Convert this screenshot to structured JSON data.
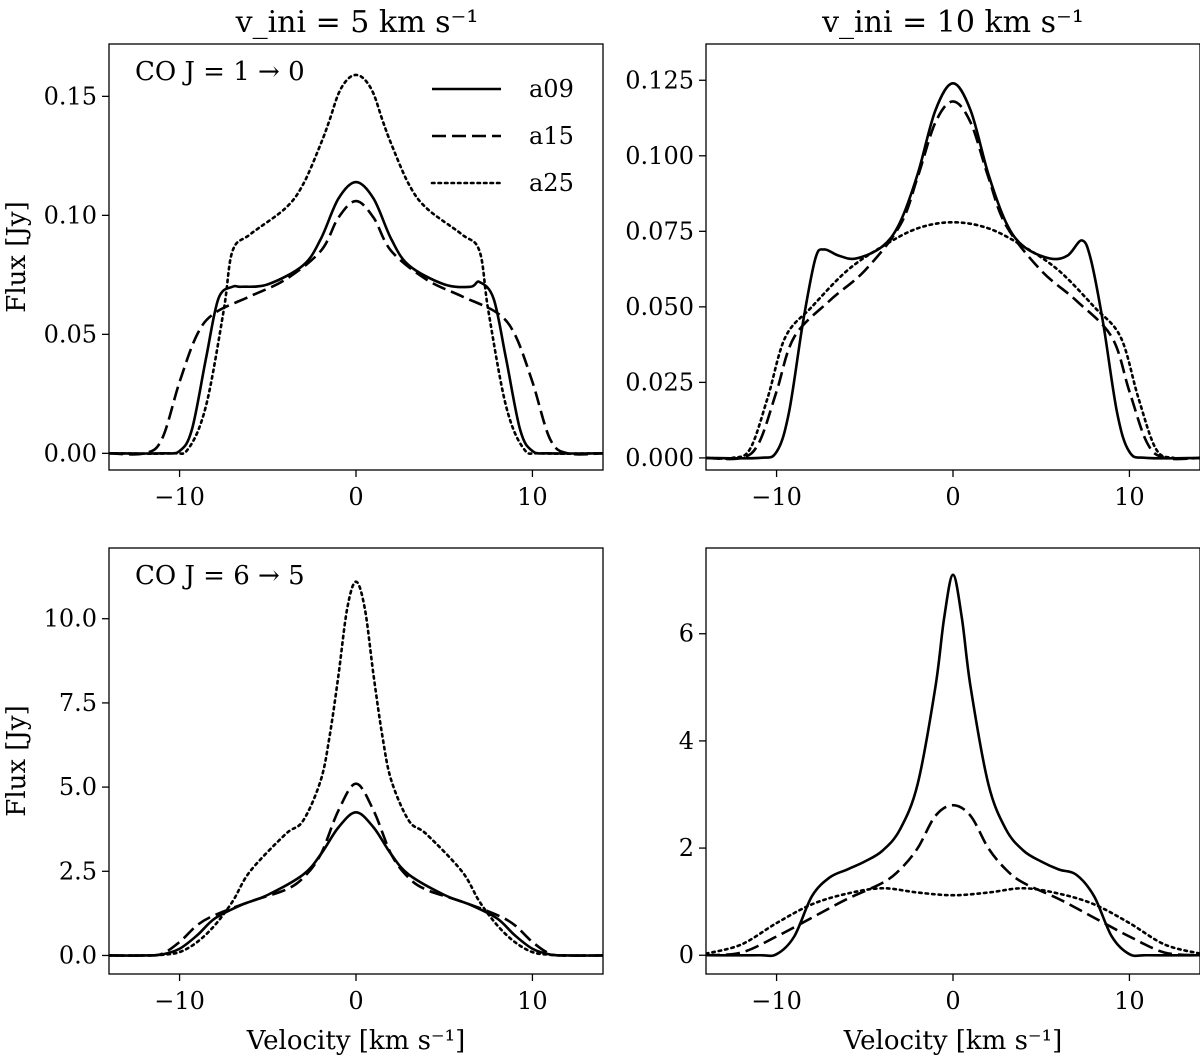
{
  "figure": {
    "col_titles": [
      "v_ini = 5 km s⁻¹",
      "v_ini = 10 km s⁻¹"
    ]
  },
  "chart_data": [
    {
      "type": "line",
      "title": "",
      "annotation": "CO J = 1 → 0",
      "xlabel": "",
      "ylabel": "Flux [Jy]",
      "xlim": [
        -14,
        14
      ],
      "ylim": [
        -0.007,
        0.172
      ],
      "xticks": [
        -10,
        0,
        10
      ],
      "xtick_labels": [
        "−10",
        "0",
        "10"
      ],
      "yticks": [
        0,
        0.05,
        0.1,
        0.15
      ],
      "ytick_labels": [
        "0.00",
        "0.05",
        "0.10",
        "0.15"
      ],
      "legend": {
        "placement": "top-right",
        "entries": [
          "a09",
          "a15",
          "a25"
        ]
      },
      "series": [
        {
          "name": "a09",
          "style": "solid",
          "x": [
            -14,
            -11,
            -10,
            -9.3,
            -8.5,
            -7.8,
            -7,
            -6.5,
            -5,
            -3,
            -2,
            -1,
            0,
            1,
            2,
            3,
            5,
            6.5,
            7,
            7.8,
            8.5,
            9.3,
            10,
            11,
            14
          ],
          "y": [
            0,
            0,
            0.001,
            0.01,
            0.04,
            0.065,
            0.07,
            0.07,
            0.071,
            0.079,
            0.09,
            0.107,
            0.114,
            0.107,
            0.09,
            0.079,
            0.071,
            0.07,
            0.072,
            0.065,
            0.04,
            0.01,
            0.001,
            0,
            0
          ]
        },
        {
          "name": "a15",
          "style": "dashed",
          "x": [
            -14,
            -12,
            -11,
            -10,
            -9,
            -8,
            -6,
            -4,
            -2,
            -1,
            0,
            1,
            2,
            4,
            6,
            8,
            9,
            10,
            11,
            12,
            14
          ],
          "y": [
            0,
            0,
            0.006,
            0.03,
            0.05,
            0.059,
            0.066,
            0.073,
            0.085,
            0.099,
            0.106,
            0.099,
            0.085,
            0.073,
            0.066,
            0.059,
            0.05,
            0.03,
            0.006,
            0,
            0
          ]
        },
        {
          "name": "a25",
          "style": "dotted",
          "x": [
            -14,
            -10.5,
            -9.5,
            -8.5,
            -7.5,
            -7,
            -6,
            -4,
            -3,
            -2,
            -1.5,
            -1,
            -0.5,
            0,
            0.5,
            1,
            1.5,
            2,
            3,
            4,
            6,
            7,
            7.5,
            8.5,
            9.5,
            10.5,
            14
          ],
          "y": [
            0,
            0,
            0.002,
            0.02,
            0.06,
            0.085,
            0.092,
            0.103,
            0.113,
            0.13,
            0.14,
            0.151,
            0.157,
            0.159,
            0.157,
            0.151,
            0.14,
            0.13,
            0.113,
            0.103,
            0.092,
            0.085,
            0.06,
            0.02,
            0.002,
            0,
            0
          ]
        }
      ]
    },
    {
      "type": "line",
      "title": "",
      "xlabel": "",
      "ylabel": "",
      "xlim": [
        -14,
        14
      ],
      "ylim": [
        -0.004,
        0.137
      ],
      "xticks": [
        -10,
        0,
        10
      ],
      "xtick_labels": [
        "−10",
        "0",
        "10"
      ],
      "yticks": [
        0,
        0.025,
        0.05,
        0.075,
        0.1,
        0.125
      ],
      "ytick_labels": [
        "0.000",
        "0.025",
        "0.050",
        "0.075",
        "0.100",
        "0.125"
      ],
      "series": [
        {
          "name": "a09",
          "style": "solid",
          "x": [
            -14,
            -11,
            -10,
            -9.3,
            -8.5,
            -7.8,
            -7.3,
            -6.5,
            -5.5,
            -4,
            -3,
            -2,
            -1,
            0,
            1,
            2,
            3,
            4,
            5.5,
            6.5,
            7.3,
            7.8,
            8.5,
            9.3,
            10,
            11,
            14
          ],
          "y": [
            0,
            0,
            0.002,
            0.015,
            0.045,
            0.066,
            0.069,
            0.067,
            0.066,
            0.07,
            0.078,
            0.094,
            0.115,
            0.124,
            0.115,
            0.094,
            0.078,
            0.07,
            0.066,
            0.067,
            0.072,
            0.066,
            0.045,
            0.015,
            0.002,
            0,
            0
          ]
        },
        {
          "name": "a15",
          "style": "dashed",
          "x": [
            -14,
            -12,
            -11,
            -10,
            -9,
            -7,
            -5,
            -3,
            -2,
            -1,
            0,
            1,
            2,
            3,
            5,
            7,
            9,
            10,
            11,
            12,
            14
          ],
          "y": [
            0,
            0,
            0.005,
            0.022,
            0.04,
            0.052,
            0.062,
            0.077,
            0.093,
            0.111,
            0.118,
            0.111,
            0.093,
            0.077,
            0.062,
            0.052,
            0.04,
            0.022,
            0.005,
            0,
            0
          ]
        },
        {
          "name": "a25",
          "style": "dotted",
          "x": [
            -14,
            -12.5,
            -11.5,
            -10.5,
            -9.5,
            -8,
            -6,
            -4,
            -2,
            0,
            2,
            4,
            6,
            8,
            9.5,
            10.5,
            11.5,
            12.5,
            14
          ],
          "y": [
            0,
            0,
            0.003,
            0.02,
            0.04,
            0.05,
            0.062,
            0.07,
            0.076,
            0.078,
            0.076,
            0.07,
            0.062,
            0.05,
            0.04,
            0.02,
            0.003,
            0,
            0
          ]
        }
      ]
    },
    {
      "type": "line",
      "title": "",
      "annotation": "CO J = 6 → 5",
      "xlabel": "Velocity [km s⁻¹]",
      "ylabel": "Flux [Jy]",
      "xlim": [
        -14,
        14
      ],
      "ylim": [
        -0.55,
        12.1
      ],
      "xticks": [
        -10,
        0,
        10
      ],
      "xtick_labels": [
        "−10",
        "0",
        "10"
      ],
      "yticks": [
        0,
        2.5,
        5,
        7.5,
        10
      ],
      "ytick_labels": [
        "0.0",
        "2.5",
        "5.0",
        "7.5",
        "10.0"
      ],
      "series": [
        {
          "name": "a09",
          "style": "solid",
          "x": [
            -14,
            -12,
            -11,
            -10,
            -9,
            -8,
            -6.5,
            -5,
            -3,
            -2,
            -1,
            0,
            1,
            2,
            3,
            5,
            6.5,
            8,
            9,
            10,
            11,
            12,
            14
          ],
          "y": [
            0,
            0,
            0.03,
            0.2,
            0.6,
            1.1,
            1.5,
            1.8,
            2.4,
            3.0,
            3.8,
            4.25,
            3.8,
            3.0,
            2.4,
            1.8,
            1.5,
            1.1,
            0.6,
            0.2,
            0.03,
            0,
            0
          ]
        },
        {
          "name": "a15",
          "style": "dashed",
          "x": [
            -14,
            -12,
            -11,
            -10,
            -9,
            -8,
            -6,
            -4,
            -3,
            -2,
            -1,
            0,
            1,
            2,
            3,
            4,
            6,
            8,
            9,
            10,
            11,
            12,
            14
          ],
          "y": [
            0,
            0,
            0.05,
            0.4,
            0.9,
            1.2,
            1.6,
            1.95,
            2.3,
            3.0,
            4.3,
            5.1,
            4.3,
            3.0,
            2.3,
            1.95,
            1.6,
            1.2,
            0.9,
            0.4,
            0.05,
            0,
            0
          ]
        },
        {
          "name": "a25",
          "style": "dotted",
          "x": [
            -14,
            -12,
            -11,
            -10,
            -9,
            -8,
            -7,
            -6,
            -4,
            -3,
            -2,
            -1.5,
            -1,
            -0.5,
            0,
            0.5,
            1,
            1.5,
            2,
            3,
            4,
            6,
            7,
            8,
            9,
            10,
            11,
            12,
            14
          ],
          "y": [
            0,
            0,
            0.02,
            0.1,
            0.4,
            0.9,
            1.6,
            2.5,
            3.6,
            4.0,
            5.2,
            6.5,
            8.3,
            10.3,
            11.1,
            10.3,
            8.3,
            6.5,
            5.2,
            4.0,
            3.6,
            2.5,
            1.6,
            0.9,
            0.4,
            0.1,
            0.02,
            0,
            0
          ]
        }
      ]
    },
    {
      "type": "line",
      "title": "",
      "xlabel": "Velocity [km s⁻¹]",
      "ylabel": "",
      "xlim": [
        -14,
        14
      ],
      "ylim": [
        -0.35,
        7.6
      ],
      "xticks": [
        -10,
        0,
        10
      ],
      "xtick_labels": [
        "−10",
        "0",
        "10"
      ],
      "yticks": [
        0,
        2,
        4,
        6
      ],
      "ytick_labels": [
        "0",
        "2",
        "4",
        "6"
      ],
      "series": [
        {
          "name": "a09",
          "style": "solid",
          "x": [
            -14,
            -11,
            -10,
            -9,
            -8,
            -7,
            -6,
            -5,
            -4,
            -3,
            -2,
            -1,
            -0.5,
            0,
            0.5,
            1,
            2,
            3,
            4,
            5,
            6,
            7,
            8,
            9,
            10,
            11,
            14
          ],
          "y": [
            0,
            0,
            0.02,
            0.35,
            1.1,
            1.45,
            1.6,
            1.75,
            1.95,
            2.35,
            3.2,
            5.0,
            6.3,
            7.1,
            6.3,
            5.0,
            3.2,
            2.35,
            1.95,
            1.75,
            1.6,
            1.5,
            1.1,
            0.35,
            0.02,
            0,
            0
          ]
        },
        {
          "name": "a15",
          "style": "dashed",
          "x": [
            -14,
            -12,
            -10,
            -8,
            -6,
            -4,
            -3,
            -2,
            -1,
            0,
            1,
            2,
            3,
            4,
            6,
            8,
            10,
            12,
            14
          ],
          "y": [
            0,
            0.05,
            0.35,
            0.7,
            1.05,
            1.35,
            1.6,
            2.0,
            2.6,
            2.8,
            2.6,
            2.0,
            1.6,
            1.35,
            1.05,
            0.7,
            0.35,
            0.05,
            0
          ]
        },
        {
          "name": "a25",
          "style": "dotted",
          "x": [
            -14,
            -12,
            -10,
            -8,
            -6,
            -4,
            -2,
            0,
            2,
            4,
            6,
            8,
            10,
            12,
            14
          ],
          "y": [
            0.03,
            0.2,
            0.6,
            0.95,
            1.15,
            1.25,
            1.17,
            1.12,
            1.17,
            1.25,
            1.15,
            0.95,
            0.6,
            0.2,
            0.03
          ]
        }
      ]
    }
  ]
}
